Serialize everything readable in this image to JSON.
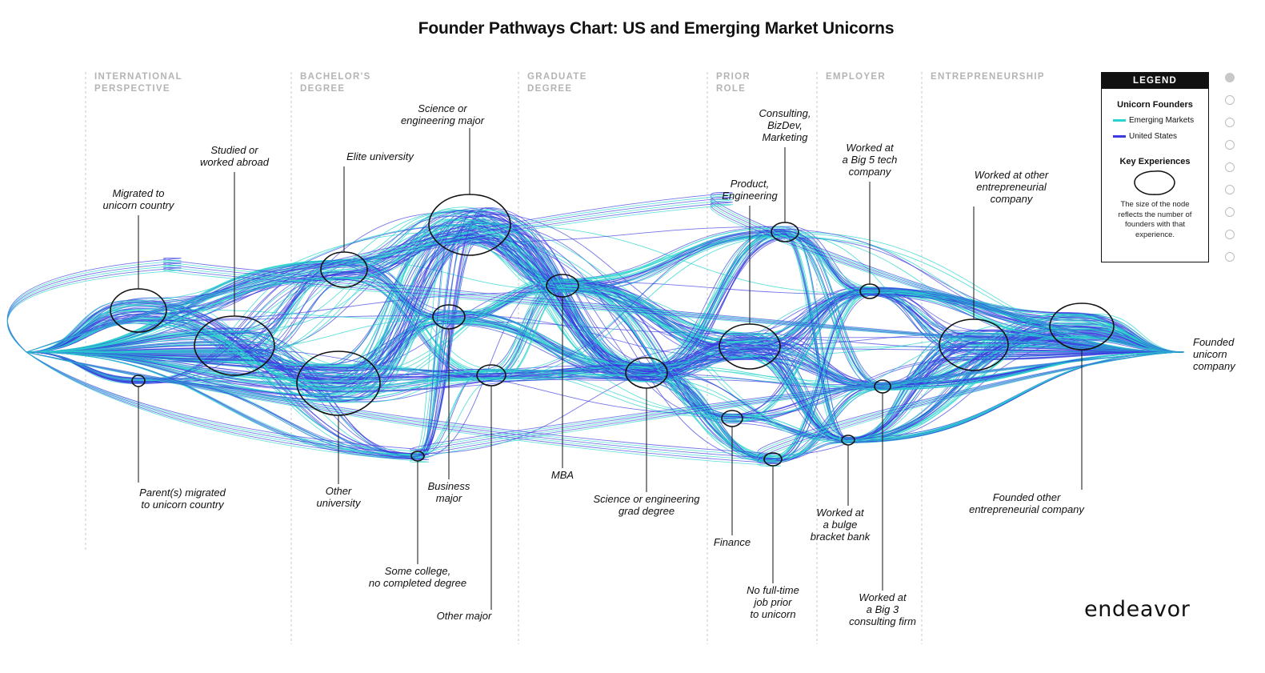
{
  "title": "Founder Pathways Chart: US and Emerging Market Unicorns",
  "stages": [
    {
      "line1": "INTERNATIONAL",
      "line2": "PERSPECTIVE"
    },
    {
      "line1": "BACHELOR'S",
      "line2": "DEGREE"
    },
    {
      "line1": "GRADUATE",
      "line2": "DEGREE"
    },
    {
      "line1": "PRIOR",
      "line2": "ROLE"
    },
    {
      "line1": "EMPLOYER",
      "line2": ""
    },
    {
      "line1": "ENTREPRENEURSHIP",
      "line2": ""
    }
  ],
  "nodes": [
    {
      "id": "migrated",
      "label": [
        "Migrated to",
        "unicorn country"
      ]
    },
    {
      "id": "parents",
      "label": [
        "Parent(s) migrated",
        "to unicorn country"
      ]
    },
    {
      "id": "abroad",
      "label": [
        "Studied or",
        "worked abroad"
      ]
    },
    {
      "id": "elite",
      "label": [
        "Elite university"
      ]
    },
    {
      "id": "otheruni",
      "label": [
        "Other",
        "university"
      ]
    },
    {
      "id": "somecollege",
      "label": [
        "Some college,",
        "no completed degree"
      ]
    },
    {
      "id": "scieng",
      "label": [
        "Science or",
        "engineering major"
      ]
    },
    {
      "id": "business",
      "label": [
        "Business",
        "major"
      ]
    },
    {
      "id": "othermajor",
      "label": [
        "Other major"
      ]
    },
    {
      "id": "mba",
      "label": [
        "MBA"
      ]
    },
    {
      "id": "scigrad",
      "label": [
        "Science or engineering",
        "grad degree"
      ]
    },
    {
      "id": "consulting",
      "label": [
        "Consulting,",
        "BizDev,",
        "Marketing"
      ]
    },
    {
      "id": "product",
      "label": [
        "Product,",
        "Engineering"
      ]
    },
    {
      "id": "finance",
      "label": [
        "Finance"
      ]
    },
    {
      "id": "nojob",
      "label": [
        "No full-time",
        "job prior",
        "to unicorn"
      ]
    },
    {
      "id": "big5",
      "label": [
        "Worked at",
        "a Big 5 tech",
        "company"
      ]
    },
    {
      "id": "bulge",
      "label": [
        "Worked at",
        "a bulge",
        "bracket bank"
      ]
    },
    {
      "id": "big3",
      "label": [
        "Worked at",
        "a Big 3",
        "consulting firm"
      ]
    },
    {
      "id": "workedent",
      "label": [
        "Worked at other",
        "entrepreneurial",
        "company"
      ]
    },
    {
      "id": "foundedother",
      "label": [
        "Founded other",
        "entrepreneurial company"
      ]
    },
    {
      "id": "end",
      "label": [
        "Founded",
        "unicorn",
        "company"
      ]
    }
  ],
  "legend": {
    "heading": "LEGEND",
    "founders_title": "Unicorn Founders",
    "series": [
      {
        "name": "Emerging Markets",
        "color": "#2ad4cc"
      },
      {
        "name": "United States",
        "color": "#3a3ae0"
      }
    ],
    "key_title": "Key Experiences",
    "node_note": "The size of the node reflects the number of founders with that experience."
  },
  "pagination": {
    "count": 9,
    "active": 0
  },
  "brand": "endeavor"
}
